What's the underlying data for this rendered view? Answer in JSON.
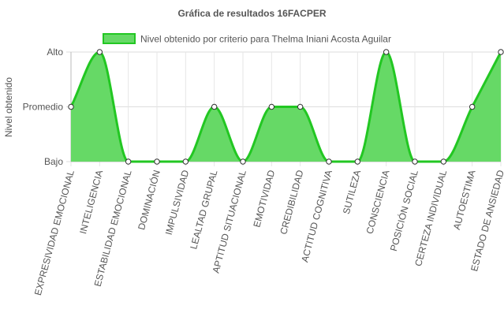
{
  "chart_data": {
    "type": "area",
    "title": "Gráfica de resultados 16FACPER",
    "ylabel": "Nivel obtenido",
    "xlabel": "",
    "y_levels": [
      "Bajo",
      "Promedio",
      "Alto"
    ],
    "ylim": [
      0,
      2
    ],
    "grid": true,
    "legend_position": "top",
    "categories": [
      "EXPRESIVIDAD EMOCIONAL",
      "INTELIGENCIA",
      "ESTABILIDAD EMOCIONAL",
      "DOMINACIÓN",
      "IMPULSIVIDAD",
      "LEALTAD GRUPAL",
      "APTITUD SITUACIONAL",
      "EMOTIVIDAD",
      "CREDIBILIDAD",
      "ACTITUD COGNITIVA",
      "SUTILEZA",
      "CONSCIENCIA",
      "POSICIÓN SOCIAL",
      "CERTEZA INDIVIDUAL",
      "AUTOESTIMA",
      "ESTADO DE ANSIEDAD"
    ],
    "series": [
      {
        "name": "Nivel obtenido por criterio para Thelma Iniani Acosta Aguilar",
        "values": [
          1,
          2,
          0,
          0,
          0,
          1,
          0,
          1,
          1,
          0,
          0,
          2,
          0,
          0,
          1,
          2
        ],
        "fill_color": "#66d966",
        "line_color": "#22c722"
      }
    ]
  }
}
